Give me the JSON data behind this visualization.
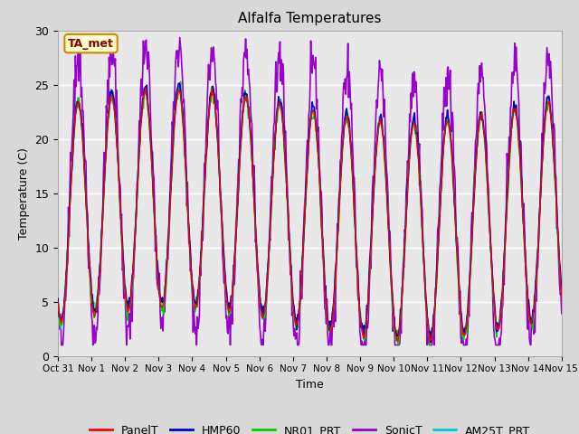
{
  "title": "Alfalfa Temperatures",
  "ylabel": "Temperature (C)",
  "xlabel": "Time",
  "ylim": [
    0,
    30
  ],
  "annotation": "TA_met",
  "annotation_color": "#8B0000",
  "annotation_bg": "#FFFFCC",
  "annotation_edge": "#CC8800",
  "bg_color": "#D8D8D8",
  "plot_bg": "#E8E8E8",
  "fig_bg": "#D8D8D8",
  "line_colors": {
    "PanelT": "#FF0000",
    "HMP60": "#0000CC",
    "NR01_PRT": "#00CC00",
    "SonicT": "#9900CC",
    "AM25T_PRT": "#00CCCC"
  },
  "line_widths": {
    "PanelT": 1.0,
    "HMP60": 1.2,
    "NR01_PRT": 1.2,
    "SonicT": 1.2,
    "AM25T_PRT": 1.2
  },
  "xtick_labels": [
    "Oct 31",
    "Nov 1",
    "Nov 2",
    "Nov 3",
    "Nov 4",
    "Nov 5",
    "Nov 6",
    "Nov 7",
    "Nov 8",
    "Nov 9",
    "Nov 10",
    "Nov 11",
    "Nov 12",
    "Nov 13",
    "Nov 14",
    "Nov 15"
  ],
  "n_days": 15,
  "samples_per_day": 48
}
